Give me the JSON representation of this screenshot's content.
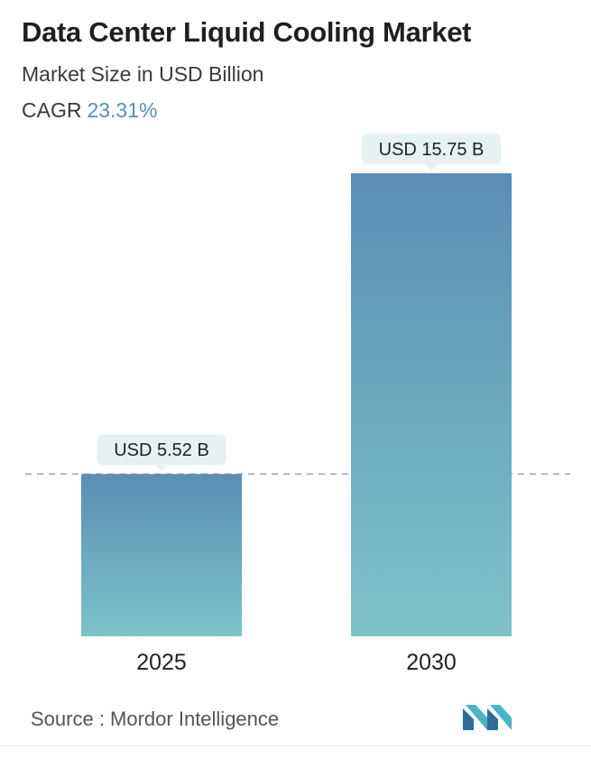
{
  "header": {
    "title": "Data Center Liquid Cooling Market",
    "subtitle": "Market Size in USD Billion",
    "cagr_label": "CAGR",
    "cagr_value": "23.31%"
  },
  "chart_data": {
    "type": "bar",
    "categories": [
      "2025",
      "2030"
    ],
    "values": [
      5.52,
      15.75
    ],
    "data_labels": [
      "USD 5.52 B",
      "USD 15.75 B"
    ],
    "reference_line_value": 5.52,
    "title": "Data Center Liquid Cooling Market",
    "xlabel": "",
    "ylabel": "",
    "grid": false,
    "colors": {
      "bar_top": "#5b8db6",
      "bar_bottom": "#7dc3c8",
      "label_bg": "#e8f1f2",
      "reference_line": "#6b8fa6"
    }
  },
  "footer": {
    "source": "Source :  Mordor Intelligence",
    "logo_icon": "mordor-intelligence-logo-icon"
  }
}
